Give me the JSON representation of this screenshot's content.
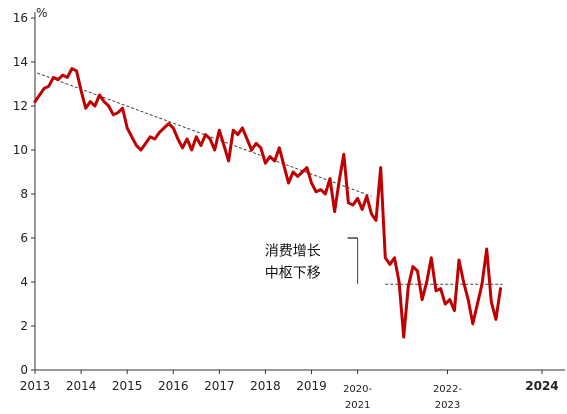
{
  "chart_data": {
    "type": "line",
    "y_unit": "%",
    "ylim": [
      0,
      16
    ],
    "y_ticks": [
      0,
      2,
      4,
      6,
      8,
      10,
      12,
      14,
      16
    ],
    "xlim": [
      2013,
      2024.5
    ],
    "x_tick_labels": [
      {
        "x": 2013,
        "lines": [
          "2013"
        ]
      },
      {
        "x": 2014,
        "lines": [
          "2014"
        ]
      },
      {
        "x": 2015,
        "lines": [
          "2015"
        ]
      },
      {
        "x": 2016,
        "lines": [
          "2016"
        ]
      },
      {
        "x": 2017,
        "lines": [
          "2017"
        ]
      },
      {
        "x": 2018,
        "lines": [
          "2018"
        ]
      },
      {
        "x": 2019,
        "lines": [
          "2019"
        ]
      },
      {
        "x": 2020,
        "lines": [
          "2020-",
          "2021"
        ]
      },
      {
        "x": 2021.95,
        "lines": [
          "2022-",
          "2023"
        ]
      },
      {
        "x": 2024,
        "lines": [
          "2024"
        ],
        "bold": true
      }
    ],
    "grid": false,
    "legend": "none",
    "series": [
      {
        "color": "#c00000",
        "points": [
          [
            2013.0,
            12.2
          ],
          [
            2013.1,
            12.5
          ],
          [
            2013.2,
            12.8
          ],
          [
            2013.3,
            12.9
          ],
          [
            2013.4,
            13.3
          ],
          [
            2013.5,
            13.2
          ],
          [
            2013.6,
            13.4
          ],
          [
            2013.7,
            13.3
          ],
          [
            2013.8,
            13.7
          ],
          [
            2013.9,
            13.6
          ],
          [
            2014.0,
            12.7
          ],
          [
            2014.1,
            11.9
          ],
          [
            2014.2,
            12.2
          ],
          [
            2014.3,
            12.0
          ],
          [
            2014.4,
            12.5
          ],
          [
            2014.5,
            12.2
          ],
          [
            2014.6,
            12.0
          ],
          [
            2014.7,
            11.6
          ],
          [
            2014.8,
            11.7
          ],
          [
            2014.9,
            11.9
          ],
          [
            2015.0,
            11.0
          ],
          [
            2015.1,
            10.6
          ],
          [
            2015.2,
            10.2
          ],
          [
            2015.3,
            10.0
          ],
          [
            2015.4,
            10.3
          ],
          [
            2015.5,
            10.6
          ],
          [
            2015.6,
            10.5
          ],
          [
            2015.7,
            10.8
          ],
          [
            2015.8,
            11.0
          ],
          [
            2015.9,
            11.2
          ],
          [
            2016.0,
            11.0
          ],
          [
            2016.1,
            10.5
          ],
          [
            2016.2,
            10.1
          ],
          [
            2016.3,
            10.5
          ],
          [
            2016.4,
            10.0
          ],
          [
            2016.5,
            10.6
          ],
          [
            2016.6,
            10.2
          ],
          [
            2016.7,
            10.7
          ],
          [
            2016.8,
            10.5
          ],
          [
            2016.9,
            10.0
          ],
          [
            2017.0,
            10.9
          ],
          [
            2017.1,
            10.2
          ],
          [
            2017.2,
            9.5
          ],
          [
            2017.3,
            10.9
          ],
          [
            2017.4,
            10.7
          ],
          [
            2017.5,
            11.0
          ],
          [
            2017.6,
            10.5
          ],
          [
            2017.7,
            10.0
          ],
          [
            2017.8,
            10.3
          ],
          [
            2017.9,
            10.1
          ],
          [
            2018.0,
            9.4
          ],
          [
            2018.1,
            9.7
          ],
          [
            2018.2,
            9.5
          ],
          [
            2018.3,
            10.1
          ],
          [
            2018.4,
            9.3
          ],
          [
            2018.5,
            8.5
          ],
          [
            2018.6,
            9.0
          ],
          [
            2018.7,
            8.8
          ],
          [
            2018.8,
            9.0
          ],
          [
            2018.9,
            9.2
          ],
          [
            2019.0,
            8.5
          ],
          [
            2019.1,
            8.1
          ],
          [
            2019.2,
            8.2
          ],
          [
            2019.3,
            8.0
          ],
          [
            2019.4,
            8.7
          ],
          [
            2019.5,
            7.2
          ],
          [
            2019.6,
            8.6
          ],
          [
            2019.7,
            9.8
          ],
          [
            2019.8,
            7.6
          ],
          [
            2019.9,
            7.5
          ],
          [
            2020.0,
            7.8
          ],
          [
            2020.1,
            7.3
          ],
          [
            2020.2,
            7.9
          ],
          [
            2020.3,
            7.1
          ],
          [
            2020.4,
            6.8
          ],
          [
            2020.5,
            9.2
          ],
          [
            2020.6,
            5.1
          ],
          [
            2020.7,
            4.8
          ],
          [
            2020.8,
            5.1
          ],
          [
            2020.9,
            4.0
          ],
          [
            2021.0,
            1.5
          ],
          [
            2021.1,
            3.8
          ],
          [
            2021.2,
            4.7
          ],
          [
            2021.3,
            4.5
          ],
          [
            2021.4,
            3.2
          ],
          [
            2021.5,
            4.0
          ],
          [
            2021.6,
            5.1
          ],
          [
            2021.7,
            3.6
          ],
          [
            2021.8,
            3.7
          ],
          [
            2021.9,
            3.0
          ],
          [
            2022.0,
            3.2
          ],
          [
            2022.1,
            2.7
          ],
          [
            2022.2,
            5.0
          ],
          [
            2022.3,
            4.0
          ],
          [
            2022.4,
            3.2
          ],
          [
            2022.5,
            2.1
          ],
          [
            2022.6,
            3.0
          ],
          [
            2022.7,
            3.9
          ],
          [
            2022.8,
            5.5
          ],
          [
            2022.9,
            3.1
          ],
          [
            2023.0,
            2.3
          ],
          [
            2023.1,
            3.7
          ]
        ]
      }
    ],
    "trend_lines": [
      {
        "points": [
          [
            2013.05,
            13.5
          ],
          [
            2020.3,
            7.9
          ]
        ],
        "color": "#444444",
        "style": "dashed"
      },
      {
        "points": [
          [
            2020.6,
            3.9
          ],
          [
            2023.15,
            3.9
          ]
        ],
        "color": "#444444",
        "style": "dashed"
      }
    ],
    "bracket": {
      "x": 2020.0,
      "y_top": 6.0,
      "y_bottom": 3.9,
      "color": "#444444"
    },
    "annotation": {
      "lines": [
        "消费增长",
        "中枢下移"
      ],
      "x": 2019.2,
      "y": 5.2
    }
  }
}
